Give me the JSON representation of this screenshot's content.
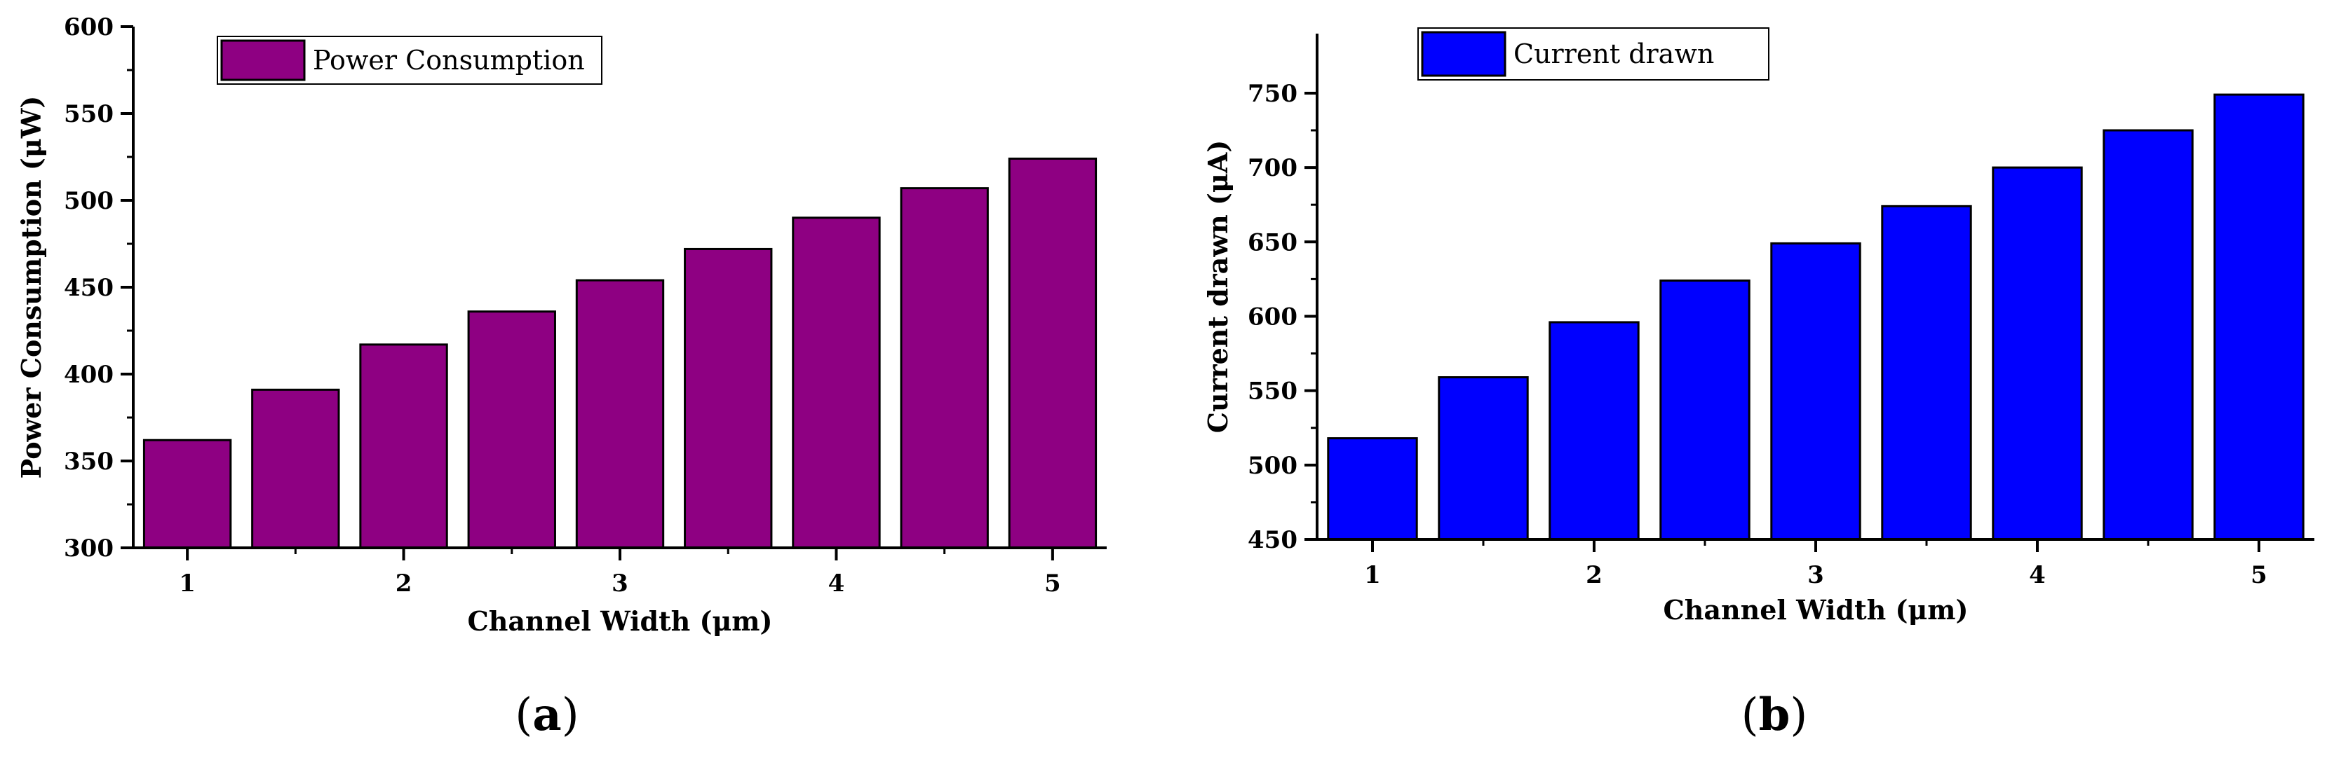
{
  "chart_data": [
    {
      "type": "bar",
      "panel": "(a)",
      "panel_letter": "a",
      "categories": [
        1,
        1.5,
        2,
        2.5,
        3,
        3.5,
        4,
        4.5,
        5
      ],
      "series": [
        {
          "name": "Power Consumption",
          "values": [
            362,
            391,
            417,
            436,
            454,
            472,
            490,
            507,
            524
          ]
        }
      ],
      "xlabel": "Channel Width (μm)",
      "ylabel": "Power Consumption (μW)",
      "xticks": [
        1,
        2,
        3,
        4,
        5
      ],
      "yticks": [
        300,
        350,
        400,
        450,
        500,
        550,
        600
      ],
      "xlim": [
        0.75,
        5.25
      ],
      "ylim": [
        300,
        600
      ],
      "legend": "top-left",
      "grid": false,
      "color": "#8e0082"
    },
    {
      "type": "bar",
      "panel": "(b)",
      "panel_letter": "b",
      "categories": [
        1,
        1.5,
        2,
        2.5,
        3,
        3.5,
        4,
        4.5,
        5
      ],
      "series": [
        {
          "name": "Current drawn",
          "values": [
            518,
            559,
            596,
            624,
            649,
            674,
            700,
            725,
            749
          ]
        }
      ],
      "xlabel": "Channel Width (μm)",
      "ylabel": "Current drawn (μA)",
      "xticks": [
        1,
        2,
        3,
        4,
        5
      ],
      "yticks": [
        450,
        500,
        550,
        600,
        650,
        700,
        750
      ],
      "xlim": [
        0.75,
        5.25
      ],
      "ylim": [
        450,
        790
      ],
      "legend": "top-left",
      "grid": false,
      "color": "#0000ff"
    }
  ]
}
